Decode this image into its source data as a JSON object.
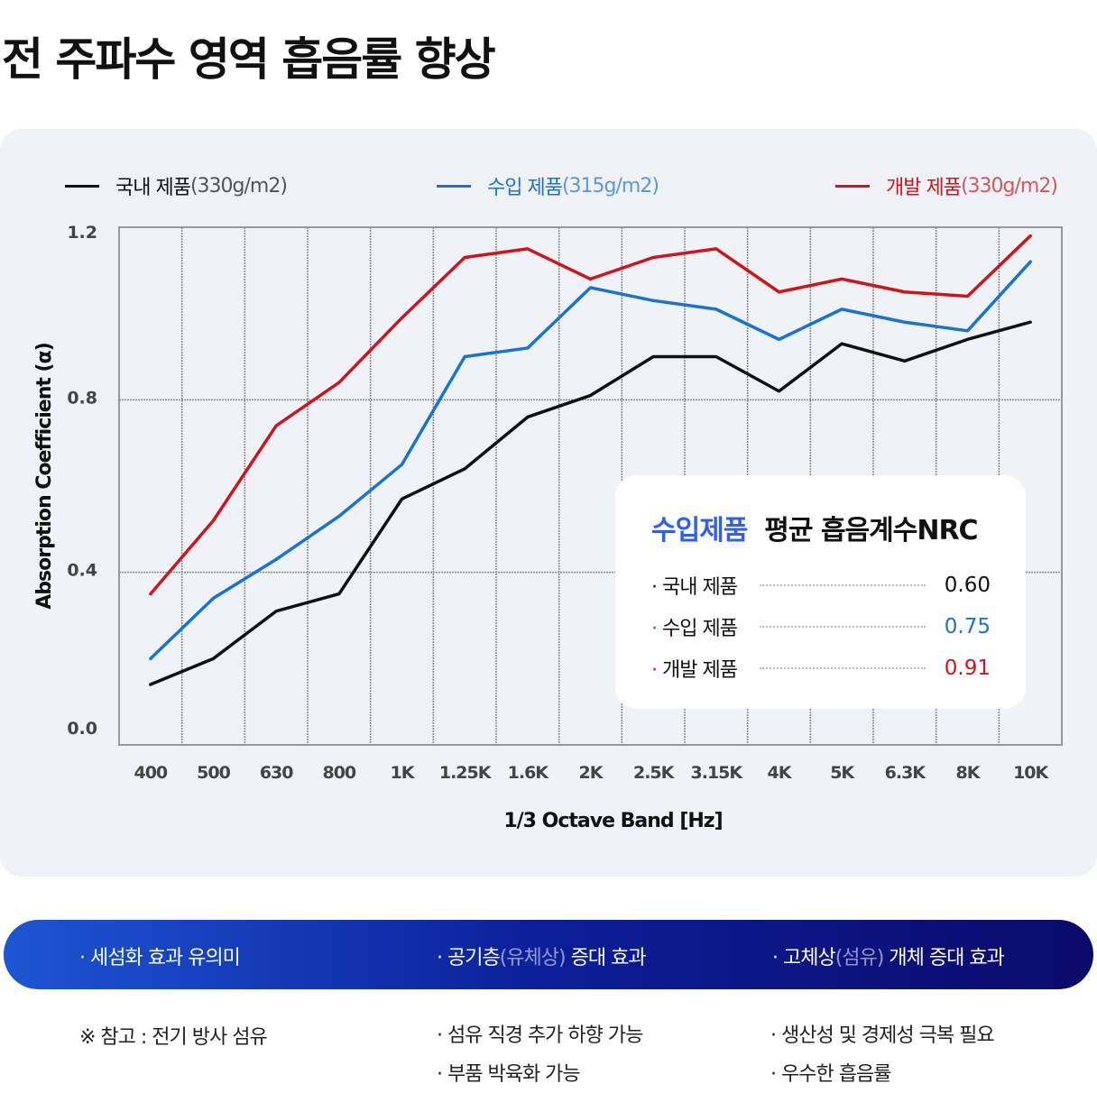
{
  "title": "전 주파수 영역 흡음률 향상",
  "legend": [
    {
      "name": "국내 제품",
      "unit": "(330g/m2)",
      "color": "#111111"
    },
    {
      "name": "수입 제품",
      "unit": "(315g/m2)",
      "color": "#1a73d0"
    },
    {
      "name": "개발 제품",
      "unit": "(330g/m2)",
      "color": "#d0141e"
    }
  ],
  "chart_data": {
    "type": "line",
    "xlabel": "1/3 Octave Band [Hz]",
    "ylabel": "Absorption Coefficient (α)",
    "categories": [
      "400",
      "500",
      "630",
      "800",
      "1K",
      "1.25K",
      "1.6K",
      "2K",
      "2.5K",
      "3.15K",
      "4K",
      "5K",
      "6.3K",
      "8K",
      "10K"
    ],
    "yticks": [
      "0.0",
      "0.4",
      "0.8",
      "1.2"
    ],
    "ylim": [
      0,
      1.2
    ],
    "grid": true,
    "legend_position": "top",
    "series": [
      {
        "name": "국내 제품",
        "color": "#111111",
        "values": [
          0.14,
          0.2,
          0.31,
          0.35,
          0.57,
          0.64,
          0.76,
          0.81,
          0.9,
          0.9,
          0.82,
          0.93,
          0.89,
          0.94,
          0.98
        ]
      },
      {
        "name": "수입 제품",
        "color": "#1a73d0",
        "values": [
          0.2,
          0.34,
          0.43,
          0.53,
          0.65,
          0.9,
          0.92,
          1.06,
          1.03,
          1.01,
          0.94,
          1.01,
          0.98,
          0.96,
          1.12
        ]
      },
      {
        "name": "개발 제품",
        "color": "#d0141e",
        "values": [
          0.35,
          0.52,
          0.74,
          0.84,
          0.99,
          1.13,
          1.15,
          1.08,
          1.13,
          1.15,
          1.05,
          1.08,
          1.05,
          1.04,
          1.18
        ]
      }
    ]
  },
  "nrc": {
    "title_highlight": "수입제품",
    "title_rest": "평균 흡음계수NRC",
    "rows": [
      {
        "label": "국내 제품",
        "value": "0.60",
        "color": "#111111"
      },
      {
        "label": "수입 제품",
        "value": "0.75",
        "color": "#1a73d0"
      },
      {
        "label": "개발 제품",
        "value": "0.91",
        "color": "#d0141e"
      }
    ]
  },
  "band": {
    "items": [
      {
        "pre": "· 세섬화 효과 유의미",
        "light": "",
        "post": ""
      },
      {
        "pre": "· 공기층",
        "light": "(유체상)",
        "post": " 증대 효과"
      },
      {
        "pre": "· 고체상",
        "light": "(섬유)",
        "post": " 개체 증대 효과"
      }
    ]
  },
  "notes": {
    "col1": [
      "※ 참고 : 전기 방사 섬유"
    ],
    "col2": [
      "· 섬유 직경 추가 하향 가능",
      "· 부품 박육화 가능"
    ],
    "col3": [
      "· 생산성 및 경제성 극복 필요",
      "· 우수한 흡음률"
    ]
  }
}
